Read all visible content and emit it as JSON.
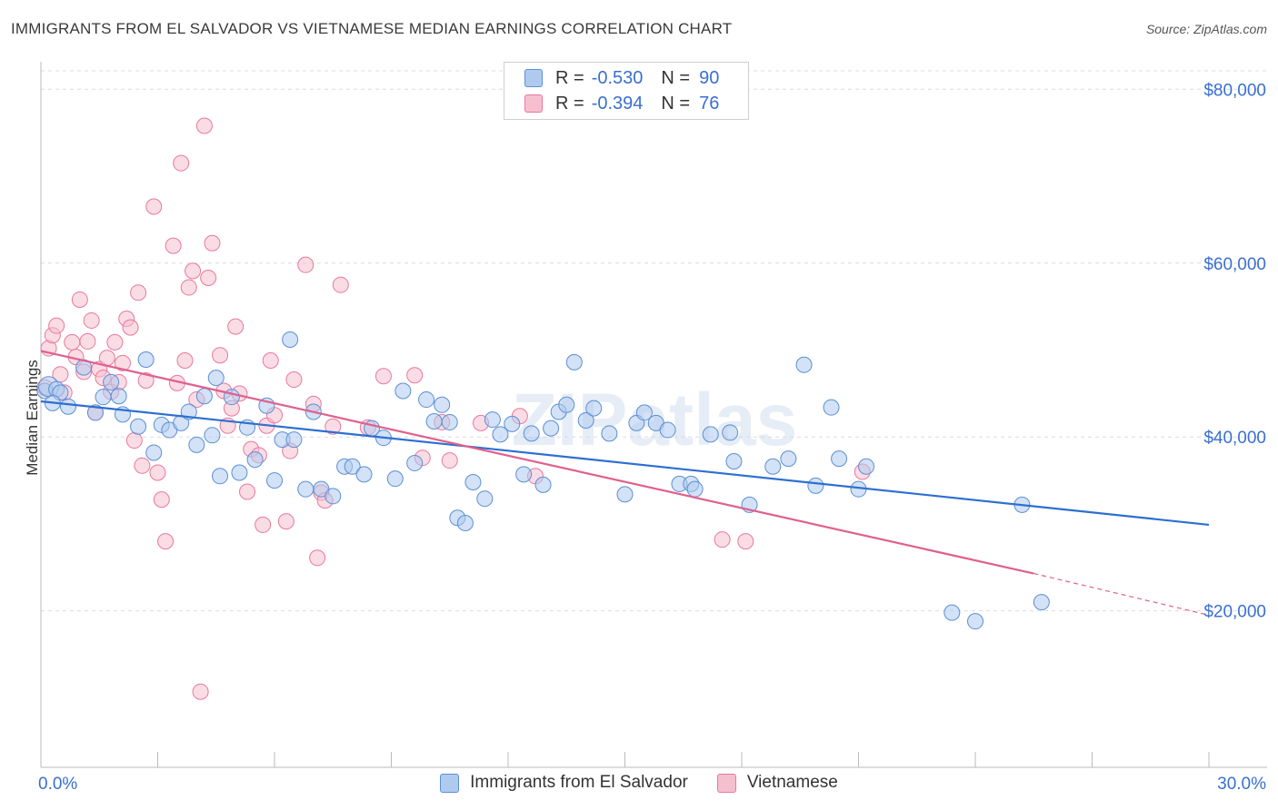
{
  "title": "IMMIGRANTS FROM EL SALVADOR VS VIETNAMESE MEDIAN EARNINGS CORRELATION CHART",
  "source": "Source: ZipAtlas.com",
  "watermark": "ZIPatlas",
  "legend": {
    "rows": [
      {
        "r_label": "R =",
        "r_value": "-0.530",
        "n_label": "N =",
        "n_value": "90"
      },
      {
        "r_label": "R =",
        "r_value": "-0.394",
        "n_label": "N =",
        "n_value": "76"
      }
    ]
  },
  "colors": {
    "blue_fill": "#aecbef",
    "blue_stroke": "#5b8fd6",
    "blue_line": "#2d6fd1",
    "pink_fill": "#f6bfd0",
    "pink_stroke": "#e8799c",
    "pink_line": "#e0608e",
    "axis_text": "#3a6fd0",
    "grid": "#dcdcdc"
  },
  "chart_data": {
    "type": "scatter",
    "title": "IMMIGRANTS FROM EL SALVADOR VS VIETNAMESE MEDIAN EARNINGS CORRELATION CHART",
    "xlabel": "",
    "ylabel": "Median Earnings",
    "xlim": [
      0,
      30
    ],
    "ylim": [
      2000,
      84000
    ],
    "x_tick_labels": [
      "0.0%",
      "30.0%"
    ],
    "y_ticks": [
      20000,
      40000,
      60000,
      80000
    ],
    "y_tick_labels": [
      "$20,000",
      "$40,000",
      "$60,000",
      "$80,000"
    ],
    "grid": true,
    "legend_position": "top-center",
    "series": [
      {
        "name": "Immigrants from El Salvador",
        "color": "blue",
        "trend": {
          "x": [
            0,
            30
          ],
          "y": [
            44100,
            29900
          ]
        },
        "points": [
          [
            0.1,
            45300
          ],
          [
            0.2,
            45800
          ],
          [
            0.4,
            45500
          ],
          [
            0.5,
            45100
          ],
          [
            0.7,
            43500
          ],
          [
            1.1,
            48000
          ],
          [
            1.4,
            42800
          ],
          [
            1.6,
            44600
          ],
          [
            1.8,
            46300
          ],
          [
            2.0,
            44700
          ],
          [
            2.1,
            42600
          ],
          [
            2.5,
            41200
          ],
          [
            2.7,
            48900
          ],
          [
            2.9,
            38200
          ],
          [
            3.1,
            41400
          ],
          [
            3.3,
            40800
          ],
          [
            3.6,
            41600
          ],
          [
            3.8,
            42900
          ],
          [
            4.0,
            39100
          ],
          [
            4.2,
            44700
          ],
          [
            4.4,
            40200
          ],
          [
            4.6,
            35500
          ],
          [
            4.9,
            44600
          ],
          [
            5.1,
            35900
          ],
          [
            5.3,
            41100
          ],
          [
            5.5,
            37400
          ],
          [
            5.8,
            43600
          ],
          [
            6.0,
            35000
          ],
          [
            6.2,
            39700
          ],
          [
            6.4,
            51200
          ],
          [
            6.5,
            39700
          ],
          [
            6.8,
            34000
          ],
          [
            7.0,
            42900
          ],
          [
            7.2,
            34000
          ],
          [
            7.5,
            33200
          ],
          [
            7.8,
            36600
          ],
          [
            8.0,
            36600
          ],
          [
            8.3,
            35700
          ],
          [
            8.5,
            41000
          ],
          [
            8.8,
            39900
          ],
          [
            9.1,
            35200
          ],
          [
            9.3,
            45300
          ],
          [
            9.6,
            37000
          ],
          [
            9.9,
            44300
          ],
          [
            10.1,
            41800
          ],
          [
            10.3,
            43700
          ],
          [
            10.5,
            41700
          ],
          [
            10.7,
            30700
          ],
          [
            10.9,
            30100
          ],
          [
            11.1,
            34800
          ],
          [
            11.4,
            32900
          ],
          [
            11.6,
            42000
          ],
          [
            11.8,
            40300
          ],
          [
            12.1,
            41500
          ],
          [
            12.4,
            35700
          ],
          [
            12.6,
            40400
          ],
          [
            12.9,
            34500
          ],
          [
            13.1,
            41000
          ],
          [
            13.3,
            42900
          ],
          [
            13.5,
            43700
          ],
          [
            13.7,
            48600
          ],
          [
            14.0,
            41900
          ],
          [
            14.2,
            43300
          ],
          [
            14.6,
            40400
          ],
          [
            15.0,
            33400
          ],
          [
            15.3,
            41600
          ],
          [
            15.5,
            42800
          ],
          [
            15.8,
            41600
          ],
          [
            16.1,
            40800
          ],
          [
            16.4,
            34600
          ],
          [
            16.7,
            34600
          ],
          [
            16.8,
            34000
          ],
          [
            17.2,
            40300
          ],
          [
            17.7,
            40500
          ],
          [
            17.8,
            37200
          ],
          [
            18.2,
            32200
          ],
          [
            18.8,
            36600
          ],
          [
            19.2,
            37500
          ],
          [
            19.6,
            48300
          ],
          [
            19.9,
            34400
          ],
          [
            20.3,
            43400
          ],
          [
            20.5,
            37500
          ],
          [
            21.0,
            34000
          ],
          [
            21.2,
            36600
          ],
          [
            23.4,
            19800
          ],
          [
            24.0,
            18800
          ],
          [
            25.2,
            32200
          ],
          [
            25.7,
            21000
          ],
          [
            0.3,
            43900
          ],
          [
            4.5,
            46800
          ]
        ]
      },
      {
        "name": "Vietnamese",
        "color": "pink",
        "trend": {
          "x": [
            0,
            25.5
          ],
          "y": [
            49900,
            24300
          ]
        },
        "trend_dashed": {
          "x": [
            25.5,
            30
          ],
          "y": [
            24300,
            19500
          ]
        },
        "points": [
          [
            0.1,
            45700
          ],
          [
            0.2,
            50200
          ],
          [
            0.3,
            51700
          ],
          [
            0.4,
            52800
          ],
          [
            0.5,
            47200
          ],
          [
            0.6,
            45100
          ],
          [
            0.8,
            50900
          ],
          [
            0.9,
            49200
          ],
          [
            1.0,
            55800
          ],
          [
            1.1,
            47500
          ],
          [
            1.2,
            51000
          ],
          [
            1.3,
            53400
          ],
          [
            1.4,
            42800
          ],
          [
            1.5,
            47800
          ],
          [
            1.6,
            46800
          ],
          [
            1.7,
            49100
          ],
          [
            1.8,
            45200
          ],
          [
            1.9,
            50900
          ],
          [
            2.0,
            46300
          ],
          [
            2.1,
            48500
          ],
          [
            2.2,
            53600
          ],
          [
            2.3,
            52600
          ],
          [
            2.4,
            39600
          ],
          [
            2.5,
            56600
          ],
          [
            2.6,
            36700
          ],
          [
            2.7,
            46500
          ],
          [
            2.9,
            66500
          ],
          [
            3.0,
            35900
          ],
          [
            3.1,
            32800
          ],
          [
            3.2,
            28000
          ],
          [
            3.4,
            62000
          ],
          [
            3.5,
            46200
          ],
          [
            3.6,
            71500
          ],
          [
            3.7,
            48800
          ],
          [
            3.8,
            57200
          ],
          [
            3.9,
            59100
          ],
          [
            4.0,
            44300
          ],
          [
            4.1,
            10700
          ],
          [
            4.2,
            75800
          ],
          [
            4.3,
            58300
          ],
          [
            4.4,
            62300
          ],
          [
            4.6,
            49400
          ],
          [
            4.7,
            45300
          ],
          [
            4.8,
            41300
          ],
          [
            4.9,
            43300
          ],
          [
            5.0,
            52700
          ],
          [
            5.1,
            45000
          ],
          [
            5.3,
            33700
          ],
          [
            5.4,
            38600
          ],
          [
            5.6,
            37900
          ],
          [
            5.7,
            29900
          ],
          [
            5.8,
            41300
          ],
          [
            5.9,
            48800
          ],
          [
            6.0,
            42500
          ],
          [
            6.3,
            30300
          ],
          [
            6.4,
            38400
          ],
          [
            6.5,
            46600
          ],
          [
            6.8,
            59800
          ],
          [
            7.0,
            43800
          ],
          [
            7.1,
            26100
          ],
          [
            7.2,
            33600
          ],
          [
            7.3,
            32700
          ],
          [
            7.5,
            41200
          ],
          [
            7.7,
            57500
          ],
          [
            8.4,
            41100
          ],
          [
            8.8,
            47000
          ],
          [
            9.6,
            47100
          ],
          [
            9.8,
            37600
          ],
          [
            10.3,
            41700
          ],
          [
            10.5,
            37300
          ],
          [
            11.3,
            41600
          ],
          [
            12.3,
            42400
          ],
          [
            12.7,
            35500
          ],
          [
            17.5,
            28200
          ],
          [
            18.1,
            28000
          ],
          [
            21.1,
            36000
          ]
        ]
      }
    ]
  },
  "bottom_legend": [
    {
      "label": "Immigrants from El Salvador"
    },
    {
      "label": "Vietnamese"
    }
  ]
}
